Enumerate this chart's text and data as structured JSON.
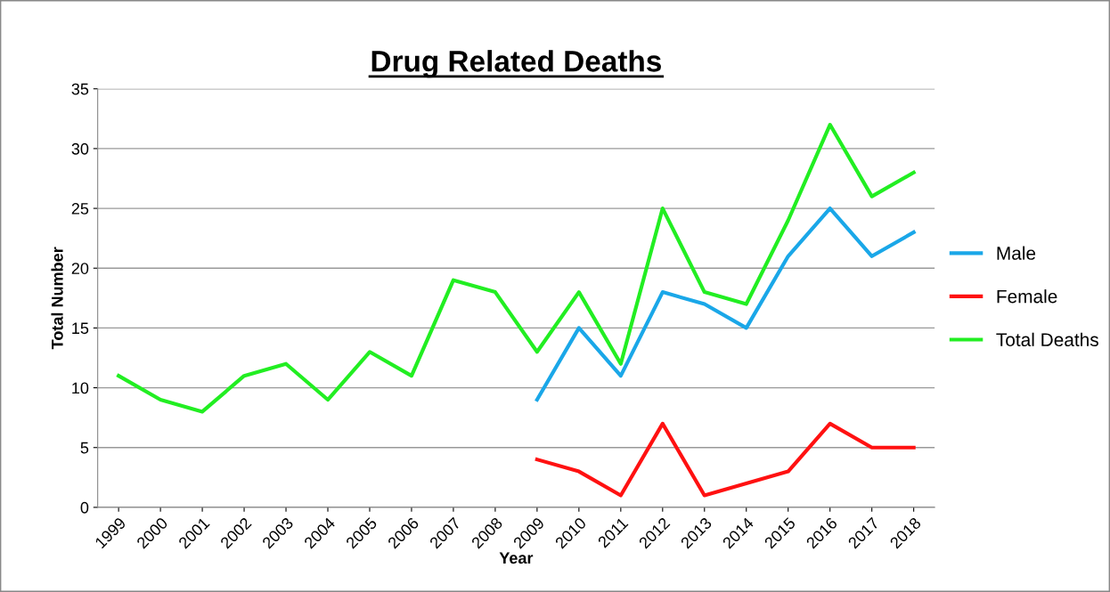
{
  "chart_data": {
    "type": "line",
    "title": "Drug Related Deaths",
    "xlabel": "Year",
    "ylabel": "Total Number",
    "categories": [
      "1999",
      "2000",
      "2001",
      "2002",
      "2003",
      "2004",
      "2005",
      "2006",
      "2007",
      "2008",
      "2009",
      "2010",
      "2011",
      "2012",
      "2013",
      "2014",
      "2015",
      "2016",
      "2017",
      "2018"
    ],
    "series": [
      {
        "name": "Male",
        "color": "#1aa7e8",
        "values": [
          null,
          null,
          null,
          null,
          null,
          null,
          null,
          null,
          null,
          null,
          9,
          15,
          11,
          18,
          17,
          15,
          21,
          25,
          21,
          23
        ]
      },
      {
        "name": "Female",
        "color": "#ff1111",
        "values": [
          null,
          null,
          null,
          null,
          null,
          null,
          null,
          null,
          null,
          null,
          4,
          3,
          1,
          7,
          1,
          2,
          3,
          7,
          5,
          5
        ]
      },
      {
        "name": "Total Deaths",
        "color": "#22ee22",
        "values": [
          11,
          9,
          8,
          11,
          12,
          9,
          13,
          11,
          19,
          18,
          13,
          18,
          12,
          25,
          18,
          17,
          24,
          32,
          26,
          28
        ]
      }
    ],
    "ylim": [
      0,
      35
    ],
    "yticks": [
      0,
      5,
      10,
      15,
      20,
      25,
      30,
      35
    ],
    "grid": "y",
    "legend": "right",
    "marker": "none",
    "line_style": "solid"
  }
}
